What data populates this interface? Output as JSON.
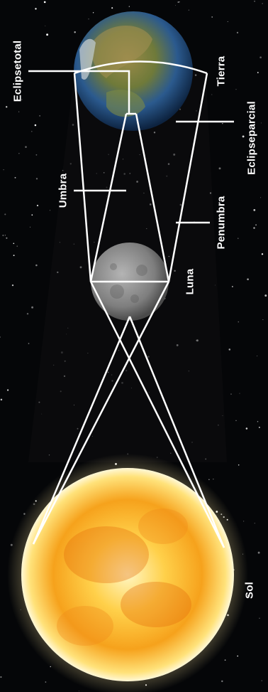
{
  "labels": {
    "eclipse_total": "Eclipsetotal",
    "tierra": "Tierra",
    "eclipse_parcial": "Eclipseparcial",
    "umbra": "Umbra",
    "penumbra": "Penumbra",
    "luna": "Luna",
    "sol": "Sol"
  },
  "colors": {
    "background": "#050608",
    "lines": "#ffffff",
    "sun_core": "#fff3a0",
    "sun_mid": "#f6a21c",
    "sun_edge": "#e07a10",
    "earth_land": "#8a7a3a",
    "earth_ocean": "#1f4f86",
    "moon": "#8d8d8d"
  }
}
